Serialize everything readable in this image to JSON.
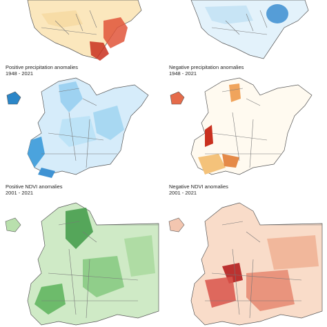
{
  "panels": [
    {
      "id": "p1",
      "line1": "",
      "line2": "",
      "theme": "warm-top"
    },
    {
      "id": "p2",
      "line1": "",
      "line2": "",
      "theme": "cool-top"
    },
    {
      "id": "p3",
      "line1": "Positive precipitation anomalies",
      "line2": "1948 - 2021",
      "theme": "blue"
    },
    {
      "id": "p4",
      "line1": "Negative precipitation anomalies",
      "line2": "1948 - 2021",
      "theme": "orange"
    },
    {
      "id": "p5",
      "line1": "Positive NDVI anomalies",
      "line2": "2001 - 2021",
      "theme": "green"
    },
    {
      "id": "p6",
      "line1": "Negative NDVI anomalies",
      "line2": "2001 - 2021",
      "theme": "red"
    }
  ],
  "colors": {
    "blue": "#7cc4ea",
    "blue_dark": "#1d7fc0",
    "orange": "#f4c27a",
    "orange_dark": "#c9301f",
    "green": "#6bbf63",
    "green_dark": "#1f7a2e",
    "red": "#e59a78",
    "red_dark": "#b51f1f",
    "border": "#555555"
  }
}
